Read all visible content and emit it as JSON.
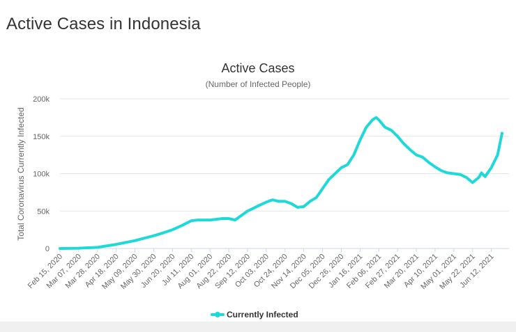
{
  "page": {
    "heading": "Active Cases in Indonesia"
  },
  "chart_data": {
    "type": "line",
    "title": "Active Cases",
    "subtitle": "(Number of Infected People)",
    "ylabel": "Total Coronavirus Currently Infected",
    "xlabel": "",
    "ylim": [
      0,
      200000
    ],
    "y_ticks": [
      0,
      50000,
      100000,
      150000,
      200000
    ],
    "y_tick_labels": [
      "0",
      "50k",
      "100k",
      "150k",
      "200k"
    ],
    "x_tick_labels": [
      "Feb 15, 2020",
      "Mar 07, 2020",
      "Mar 28, 2020",
      "Apr 18, 2020",
      "May 09, 2020",
      "May 30, 2020",
      "Jun 20, 2020",
      "Jul 11, 2020",
      "Aug 01, 2020",
      "Aug 22, 2020",
      "Sep 12, 2020",
      "Oct 03, 2020",
      "Oct 24, 2020",
      "Nov 14, 2020",
      "Dec 05, 2020",
      "Dec 26, 2020",
      "Jan 16, 2021",
      "Feb 06, 2021",
      "Feb 27, 2021",
      "Mar 20, 2021",
      "Apr 10, 2021",
      "May 01, 2021",
      "May 22, 2021",
      "Jun 12, 2021"
    ],
    "grid": true,
    "legend": "bottom-center",
    "series": [
      {
        "name": "Currently Infected",
        "color": "#1fd9d9",
        "x": [
          "Feb 15, 2020",
          "Mar 07, 2020",
          "Mar 28, 2020",
          "Apr 18, 2020",
          "May 09, 2020",
          "May 30, 2020",
          "Jun 10, 2020",
          "Jun 20, 2020",
          "Jul 01, 2020",
          "Jul 11, 2020",
          "Jul 18, 2020",
          "Aug 01, 2020",
          "Aug 15, 2020",
          "Aug 22, 2020",
          "Aug 29, 2020",
          "Sep 12, 2020",
          "Sep 26, 2020",
          "Oct 03, 2020",
          "Oct 10, 2020",
          "Oct 17, 2020",
          "Oct 24, 2020",
          "Oct 31, 2020",
          "Nov 07, 2020",
          "Nov 14, 2020",
          "Nov 21, 2020",
          "Nov 28, 2020",
          "Dec 05, 2020",
          "Dec 12, 2020",
          "Dec 19, 2020",
          "Dec 26, 2020",
          "Jan 02, 2021",
          "Jan 09, 2021",
          "Jan 16, 2021",
          "Jan 23, 2021",
          "Jan 30, 2021",
          "Feb 03, 2021",
          "Feb 06, 2021",
          "Feb 13, 2021",
          "Feb 20, 2021",
          "Feb 27, 2021",
          "Mar 06, 2021",
          "Mar 13, 2021",
          "Mar 20, 2021",
          "Mar 27, 2021",
          "Apr 03, 2021",
          "Apr 10, 2021",
          "Apr 17, 2021",
          "Apr 24, 2021",
          "May 01, 2021",
          "May 08, 2021",
          "May 15, 2021",
          "May 22, 2021",
          "May 29, 2021",
          "Jun 01, 2021",
          "Jun 05, 2021",
          "Jun 12, 2021",
          "Jun 19, 2021",
          "Jun 24, 2021"
        ],
        "values": [
          0,
          400,
          1500,
          5500,
          10500,
          17000,
          21000,
          25000,
          31000,
          37000,
          38000,
          38000,
          40000,
          40000,
          38000,
          50000,
          58000,
          62000,
          65000,
          63000,
          63000,
          60000,
          55000,
          56000,
          63000,
          68000,
          80000,
          92000,
          100000,
          108000,
          112000,
          125000,
          145000,
          162000,
          172000,
          175000,
          172000,
          162000,
          158000,
          150000,
          140000,
          132000,
          125000,
          122000,
          115000,
          109000,
          104000,
          101000,
          100000,
          99000,
          95000,
          88000,
          95000,
          101000,
          96000,
          108000,
          125000,
          154000
        ]
      }
    ]
  }
}
